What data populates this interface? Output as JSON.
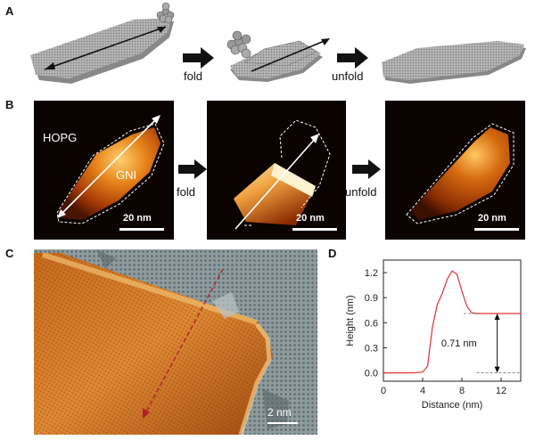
{
  "panels": {
    "a": {
      "label": "A",
      "steps": [
        "fold",
        "unfold"
      ]
    },
    "b": {
      "label": "B",
      "substrate": "HOPG",
      "flake": "GNI",
      "scale": "20 nm",
      "steps": [
        "fold",
        "unfold"
      ]
    },
    "c": {
      "label": "C",
      "scale": "2 nm"
    },
    "d": {
      "label": "D",
      "annotation": "0.71 nm"
    }
  },
  "colors": {
    "afm_dark": "#1a0700",
    "afm_orange": "#d96a10",
    "afm_bright": "#ffd070",
    "profile_line": "#d33"
  },
  "chart_data": {
    "type": "line",
    "title": "",
    "xlabel": "Distance (nm)",
    "ylabel": "Height (nm)",
    "xlim": [
      0,
      14
    ],
    "ylim": [
      -0.1,
      1.35
    ],
    "xticks": [
      0,
      4,
      8,
      12
    ],
    "yticks": [
      0.0,
      0.3,
      0.6,
      0.9,
      1.2
    ],
    "grid": false,
    "series": [
      {
        "x": [
          0,
          1,
          2,
          3,
          4,
          4.5,
          5,
          5.5,
          6,
          6.5,
          7,
          7.5,
          8,
          8.5,
          9,
          9.5,
          10,
          11,
          12,
          13,
          14
        ],
        "y": [
          0.0,
          0.0,
          0.0,
          0.0,
          0.01,
          0.08,
          0.55,
          0.82,
          0.95,
          1.12,
          1.22,
          1.18,
          0.98,
          0.8,
          0.72,
          0.71,
          0.71,
          0.71,
          0.71,
          0.71,
          0.71
        ]
      }
    ],
    "reference_levels": [
      0.0,
      0.71
    ]
  }
}
